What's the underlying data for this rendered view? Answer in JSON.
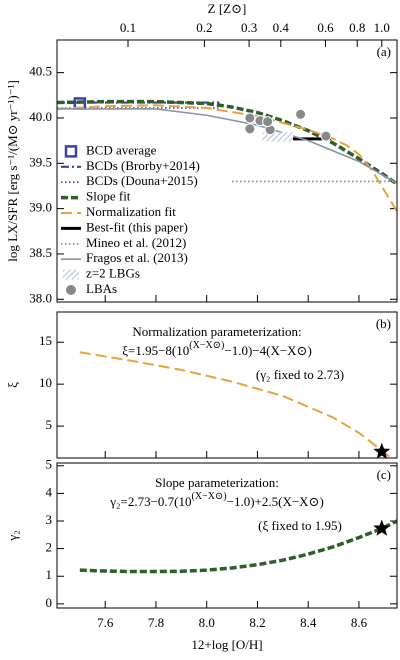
{
  "chart_data": [
    {
      "type": "line",
      "panel_label": "(a)",
      "ylabel": "log LX/SFR [erg s⁻¹/(M⊙ yr⁻¹)⁻¹]",
      "xlim": [
        7.41,
        8.75
      ],
      "x2label": "Z [Z⊙]",
      "x2scale": "log",
      "x2lim": [
        0.0525,
        1.148
      ],
      "x2ticks": [
        0.1,
        0.2,
        0.3,
        0.4,
        0.6,
        0.8,
        {
          "value": 1,
          "label": "1.0"
        }
      ],
      "ylim": [
        37.97,
        40.86
      ],
      "yticks": [
        {
          "value": 38,
          "label": "38.0"
        },
        38.5,
        {
          "value": 39,
          "label": "39.0"
        },
        39.5,
        {
          "value": 40,
          "label": "40.0"
        },
        40.5
      ],
      "legend": "left",
      "series": [
        {
          "name": "BCD average",
          "kind": "points",
          "marker": "square",
          "color": "#3a44a0",
          "x": [
            7.5
          ],
          "values": [
            40.16
          ]
        },
        {
          "name": "BCDs (Brorby+2014)",
          "kind": "line",
          "style": "dashdot",
          "color": "#3a44a0",
          "x": [
            7.41,
            8.05
          ],
          "values": [
            40.17,
            40.17
          ]
        },
        {
          "name": "BCDs (Douna+2015)",
          "kind": "line",
          "style": "dotted",
          "color": "#3a44a0",
          "x": [
            7.41,
            8.05
          ],
          "values": [
            40.11,
            40.11
          ]
        },
        {
          "name": "Slope fit",
          "kind": "line",
          "style": "dashed",
          "color": "#2e5e2a",
          "x": [
            7.41,
            7.6,
            7.8,
            8.0,
            8.1,
            8.2,
            8.3,
            8.4,
            8.5,
            8.6,
            8.7,
            8.75
          ],
          "values": [
            40.17,
            40.18,
            40.18,
            40.16,
            40.12,
            40.06,
            39.97,
            39.86,
            39.72,
            39.55,
            39.37,
            39.27
          ]
        },
        {
          "name": "Normalization fit",
          "kind": "line",
          "style": "longdash",
          "color": "#e8a33a",
          "x": [
            7.41,
            7.6,
            7.8,
            8.0,
            8.2,
            8.4,
            8.5,
            8.55,
            8.6,
            8.65,
            8.7,
            8.75
          ],
          "values": [
            40.1,
            40.13,
            40.14,
            40.11,
            40.02,
            39.87,
            39.77,
            39.7,
            39.6,
            39.43,
            39.2,
            38.97
          ]
        },
        {
          "name": "Best-fit (this paper)",
          "kind": "line",
          "style": "bold",
          "color": "#000000",
          "x": [
            8.3,
            8.49
          ],
          "values": [
            39.77,
            39.77
          ]
        },
        {
          "name": "Mineo et al. (2012)",
          "kind": "line",
          "style": "dotted",
          "color": "#888888",
          "x": [
            8.1,
            8.75
          ],
          "values": [
            39.3,
            39.3
          ]
        },
        {
          "name": "Fragos et al. (2013)",
          "kind": "line",
          "style": "solid",
          "color": "#8a94a8",
          "x": [
            7.41,
            7.8,
            8.0,
            8.2,
            8.4,
            8.6,
            8.75
          ],
          "values": [
            40.1,
            40.1,
            40.03,
            39.92,
            39.75,
            39.52,
            39.28
          ]
        },
        {
          "name": "z=2 LBGs",
          "kind": "band",
          "color": "#9ab0d8",
          "x": [
            8.22,
            8.34
          ],
          "values": [
            39.74,
            39.84
          ]
        },
        {
          "name": "LBAs",
          "kind": "points",
          "marker": "circle",
          "color": "#888888",
          "x": [
            8.17,
            8.17,
            8.21,
            8.25,
            8.24,
            8.37,
            8.47
          ],
          "values": [
            40.0,
            39.88,
            39.97,
            39.87,
            39.96,
            40.04,
            39.8
          ]
        }
      ]
    },
    {
      "type": "line",
      "panel_label": "(b)",
      "ylabel": "ξ",
      "xlim": [
        7.41,
        8.75
      ],
      "ylim": [
        1.2,
        18.6
      ],
      "yticks": [
        5,
        10,
        15
      ],
      "annotation": {
        "title": "Normalization parameterization:",
        "formula": [
          "ξ=1.95−8(10",
          "(X−X⊙)",
          "−1.0)−4(X−X⊙)"
        ],
        "note": "(γ₂ fixed to 2.73)"
      },
      "series": [
        {
          "kind": "line",
          "style": "longdash",
          "color": "#e8a33a",
          "x": [
            7.5,
            7.7,
            7.9,
            8.1,
            8.3,
            8.5,
            8.6,
            8.69,
            8.75
          ],
          "values": [
            13.8,
            12.8,
            11.7,
            10.3,
            8.6,
            6.0,
            4.2,
            2.1,
            0.6
          ]
        },
        {
          "kind": "star",
          "color": "#000000",
          "x": [
            8.69
          ],
          "values": [
            1.95
          ]
        }
      ]
    },
    {
      "type": "line",
      "panel_label": "(c)",
      "ylabel": "γ₂",
      "xlim": [
        7.41,
        8.75
      ],
      "xlabel": "12+log [O/H]",
      "xticks": [
        7.6,
        7.8,
        {
          "value": 8,
          "label": "8.0"
        },
        8.2,
        8.4,
        8.6
      ],
      "ylim": [
        -0.15,
        5.1
      ],
      "yticks": [
        0,
        1,
        2,
        3,
        4,
        5
      ],
      "annotation": {
        "title": "Slope parameterization:",
        "formula": [
          "γ₂=2.73−0.7(10",
          "(X−X⊙)",
          "−1.0)+2.5(X−X⊙)"
        ],
        "note": "(ξ fixed to 1.95)"
      },
      "series": [
        {
          "kind": "line",
          "style": "dashed",
          "color": "#2e5e2a",
          "x": [
            7.5,
            7.6,
            7.7,
            7.8,
            7.9,
            8.0,
            8.1,
            8.2,
            8.3,
            8.4,
            8.5,
            8.6,
            8.69,
            8.75
          ],
          "values": [
            1.22,
            1.19,
            1.17,
            1.17,
            1.18,
            1.22,
            1.3,
            1.42,
            1.58,
            1.8,
            2.07,
            2.4,
            2.73,
            3.0
          ]
        },
        {
          "kind": "star",
          "color": "#000000",
          "x": [
            8.69
          ],
          "values": [
            2.73
          ]
        }
      ]
    }
  ]
}
